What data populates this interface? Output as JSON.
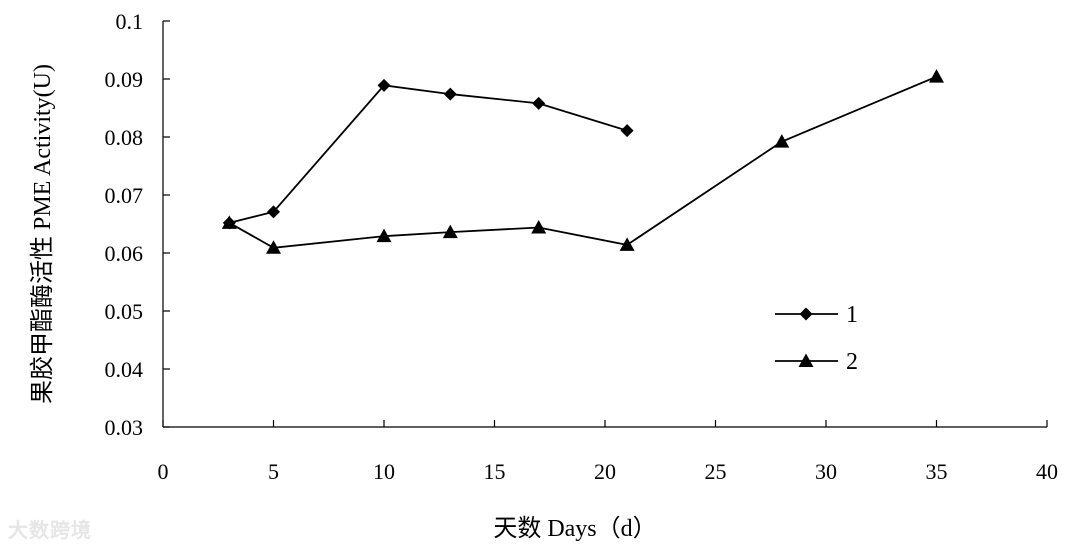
{
  "chart_data": {
    "type": "line",
    "xlabel": "天数 Days（d）",
    "ylabel": "果胶甲酯酶活性 PME Activity(U)",
    "xlim": [
      0,
      40
    ],
    "ylim": [
      0.03,
      0.1
    ],
    "xticks": [
      "0",
      "5",
      "10",
      "15",
      "20",
      "25",
      "30",
      "35",
      "40"
    ],
    "yticks": [
      "0.03",
      "0.04",
      "0.05",
      "0.06",
      "0.07",
      "0.08",
      "0.09",
      "0.1"
    ],
    "grid": false,
    "legend_position": "right-center",
    "series": [
      {
        "name": "1",
        "marker": "diamond",
        "x": [
          3,
          5,
          10,
          13,
          17,
          21
        ],
        "y": [
          0.0652,
          0.0671,
          0.0889,
          0.0874,
          0.0858,
          0.0811
        ]
      },
      {
        "name": "2",
        "marker": "triangle",
        "x": [
          3,
          5,
          10,
          13,
          17,
          21,
          28,
          35
        ],
        "y": [
          0.0652,
          0.0609,
          0.0629,
          0.0636,
          0.0644,
          0.0614,
          0.0792,
          0.0904
        ]
      }
    ]
  },
  "watermark": "大数跨境",
  "colors": {
    "line": "#000000",
    "watermark": "#e6e6e6"
  }
}
